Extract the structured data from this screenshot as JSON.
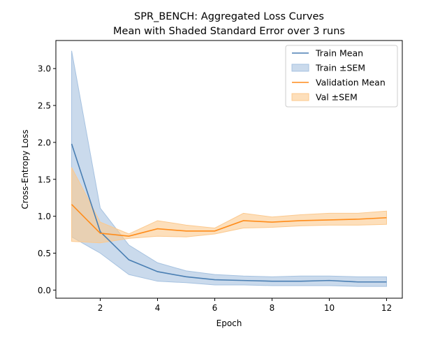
{
  "chart_data": {
    "type": "line",
    "title": "SPR_BENCH: Aggregated Loss Curves",
    "subtitle": "Mean with Shaded Standard Error over 3 runs",
    "xlabel": "Epoch",
    "ylabel": "Cross-Entropy Loss",
    "xlim": [
      0.45,
      12.55
    ],
    "ylim": [
      -0.11,
      3.38
    ],
    "xticks": [
      2,
      4,
      6,
      8,
      10,
      12
    ],
    "yticks": [
      0.0,
      0.5,
      1.0,
      1.5,
      2.0,
      2.5,
      3.0
    ],
    "ytick_labels": [
      "0.0",
      "0.5",
      "1.0",
      "1.5",
      "2.0",
      "2.5",
      "3.0"
    ],
    "grid": false,
    "legend_position": "top-right",
    "x": [
      1,
      2,
      3,
      4,
      5,
      6,
      7,
      8,
      9,
      10,
      11,
      12
    ],
    "series": [
      {
        "name": "Train Mean",
        "band_name": "Train ±SEM",
        "color": "#4a7fb3",
        "band_color": "#a6c2e0",
        "values": [
          1.98,
          0.79,
          0.41,
          0.25,
          0.18,
          0.14,
          0.13,
          0.12,
          0.12,
          0.13,
          0.11,
          0.11
        ],
        "lower": [
          0.72,
          0.5,
          0.21,
          0.12,
          0.1,
          0.07,
          0.07,
          0.06,
          0.06,
          0.06,
          0.05,
          0.05
        ],
        "upper": [
          3.24,
          1.11,
          0.61,
          0.37,
          0.26,
          0.21,
          0.19,
          0.18,
          0.19,
          0.19,
          0.18,
          0.18
        ]
      },
      {
        "name": "Validation Mean",
        "band_name": "Val ±SEM",
        "color": "#ff8c1a",
        "band_color": "#fcc98e",
        "values": [
          1.16,
          0.77,
          0.73,
          0.83,
          0.8,
          0.8,
          0.94,
          0.92,
          0.94,
          0.95,
          0.96,
          0.98
        ],
        "lower": [
          0.66,
          0.64,
          0.7,
          0.73,
          0.72,
          0.76,
          0.84,
          0.85,
          0.87,
          0.88,
          0.88,
          0.89
        ],
        "upper": [
          1.66,
          0.92,
          0.76,
          0.94,
          0.88,
          0.84,
          1.04,
          0.99,
          1.02,
          1.04,
          1.04,
          1.07
        ]
      }
    ]
  }
}
